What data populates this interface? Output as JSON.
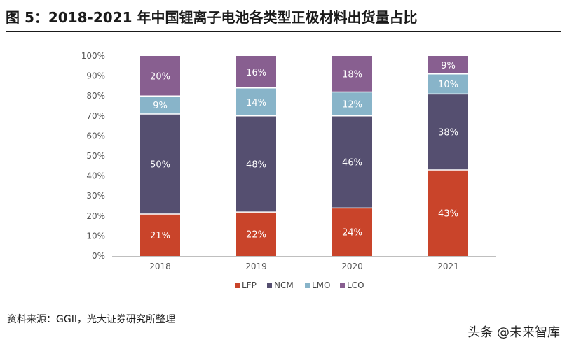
{
  "header": {
    "title": "图 5：2018-2021 年中国锂离子电池各类型正极材料出货量占比"
  },
  "footer": {
    "source": "资料来源：GGII，光大证券研究所整理",
    "watermark": "头条 @未来智库"
  },
  "chart_data": {
    "type": "bar",
    "stacked": true,
    "categories": [
      "2018",
      "2019",
      "2020",
      "2021"
    ],
    "series": [
      {
        "name": "LFP",
        "values": [
          21,
          22,
          24,
          43
        ],
        "color": "#c9442a"
      },
      {
        "name": "NCM",
        "values": [
          50,
          48,
          46,
          38
        ],
        "color": "#554f70"
      },
      {
        "name": "LMO",
        "values": [
          9,
          14,
          12,
          10
        ],
        "color": "#88b4c9"
      },
      {
        "name": "LCO",
        "values": [
          20,
          16,
          18,
          9
        ],
        "color": "#885f90"
      }
    ],
    "value_labels": [
      [
        "21%",
        "22%",
        "24%",
        "43%"
      ],
      [
        "50%",
        "48%",
        "46%",
        "38%"
      ],
      [
        "9%",
        "14%",
        "12%",
        "10%"
      ],
      [
        "20%",
        "16%",
        "18%",
        "9%"
      ]
    ],
    "y_ticks": [
      "0%",
      "10%",
      "20%",
      "30%",
      "40%",
      "50%",
      "60%",
      "70%",
      "80%",
      "90%",
      "100%"
    ],
    "ylim": [
      0,
      100
    ],
    "legend_position": "bottom-center",
    "title": "",
    "xlabel": "",
    "ylabel": ""
  }
}
